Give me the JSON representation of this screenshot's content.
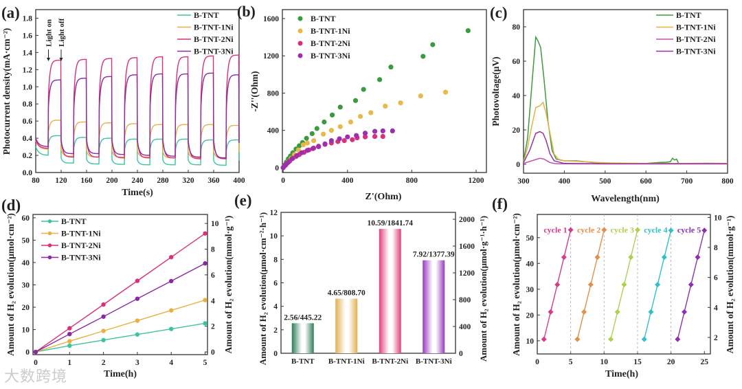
{
  "watermark": "大数跨境",
  "chart_data": [
    {
      "panel": "(a)",
      "type": "line",
      "xlabel": "Time(s)",
      "ylabel": "Photocurrent density(mA·cm⁻²)",
      "xlim": [
        80,
        400
      ],
      "ylim": [
        0,
        1.9
      ],
      "xticks": [
        80,
        120,
        160,
        200,
        240,
        280,
        320,
        360,
        400
      ],
      "yticks": [
        "0.0",
        "0.2",
        "0.4",
        "0.6",
        "0.8",
        "1.0",
        "1.2",
        "1.4",
        "1.6",
        "1.8"
      ],
      "annotations": [
        "Light on",
        "Light off"
      ],
      "annotation_x": [
        100,
        120
      ],
      "light_on_start": [
        100,
        140,
        180,
        220,
        260,
        300,
        340,
        380
      ],
      "light_on_duration": 20,
      "legend_position": "top-right",
      "series": [
        {
          "name": "B-TNT",
          "color": "#3cc4a0",
          "off_level": [
            0.2,
            0.11,
            0.1,
            0.095,
            0.09,
            0.09,
            0.09,
            0.085
          ],
          "on_level": [
            0.43,
            0.41,
            0.4,
            0.39,
            0.39,
            0.39,
            0.38,
            0.38
          ]
        },
        {
          "name": "B-TNT-1Ni",
          "color": "#e8b040",
          "off_level": [
            0.27,
            0.19,
            0.18,
            0.18,
            0.18,
            0.17,
            0.17,
            0.17
          ],
          "on_level": [
            0.61,
            0.59,
            0.58,
            0.57,
            0.56,
            0.56,
            0.56,
            0.55
          ]
        },
        {
          "name": "B-TNT-2Ni",
          "color": "#d8307a",
          "off_level": [
            0.28,
            0.18,
            0.18,
            0.17,
            0.17,
            0.17,
            0.16,
            0.16
          ],
          "on_level": [
            1.31,
            1.32,
            1.33,
            1.34,
            1.35,
            1.35,
            1.36,
            1.37
          ]
        },
        {
          "name": "B-TNT-3Ni",
          "color": "#8a2aa0",
          "off_level": [
            0.3,
            0.22,
            0.22,
            0.21,
            0.2,
            0.19,
            0.18,
            0.17
          ],
          "on_level": [
            1.08,
            1.1,
            1.12,
            1.14,
            1.15,
            1.15,
            1.16,
            1.14
          ]
        }
      ]
    },
    {
      "panel": "(b)",
      "type": "scatter",
      "xlabel": "Z'(Ohm)",
      "ylabel": "-Z''(Ohm)",
      "xlim": [
        -5,
        1264
      ],
      "ylim": [
        -52,
        1696
      ],
      "xticks": [
        0,
        400,
        800,
        1200
      ],
      "yticks": [
        0,
        400,
        800,
        1200,
        1600
      ],
      "legend_position": "top-left",
      "series": [
        {
          "name": "B-TNT",
          "color": "#3a9a40",
          "points": [
            [
              0,
              0
            ],
            [
              10,
              30
            ],
            [
              20,
              60
            ],
            [
              32,
              95
            ],
            [
              45,
              125
            ],
            [
              60,
              160
            ],
            [
              80,
              200
            ],
            [
              100,
              235
            ],
            [
              120,
              270
            ],
            [
              145,
              315
            ],
            [
              180,
              365
            ],
            [
              210,
              420
            ],
            [
              255,
              490
            ],
            [
              305,
              565
            ],
            [
              355,
              650
            ],
            [
              450,
              720
            ],
            [
              500,
              840
            ],
            [
              600,
              945
            ],
            [
              670,
              1080
            ],
            [
              870,
              1195
            ],
            [
              930,
              1320
            ],
            [
              1150,
              1470
            ]
          ]
        },
        {
          "name": "B-TNT-1Ni",
          "color": "#e8b84a",
          "points": [
            [
              0,
              0
            ],
            [
              15,
              30
            ],
            [
              30,
              60
            ],
            [
              50,
              100
            ],
            [
              70,
              140
            ],
            [
              95,
              190
            ],
            [
              125,
              245
            ],
            [
              150,
              265
            ],
            [
              190,
              290
            ],
            [
              250,
              360
            ],
            [
              300,
              400
            ],
            [
              355,
              440
            ],
            [
              420,
              490
            ],
            [
              480,
              550
            ],
            [
              545,
              590
            ],
            [
              635,
              660
            ],
            [
              730,
              695
            ],
            [
              855,
              770
            ],
            [
              1010,
              810
            ]
          ]
        },
        {
          "name": "B-TNT-2Ni",
          "color": "#d8307a",
          "points": [
            [
              0,
              0
            ],
            [
              10,
              20
            ],
            [
              20,
              40
            ],
            [
              40,
              70
            ],
            [
              60,
              100
            ],
            [
              80,
              120
            ],
            [
              100,
              140
            ],
            [
              130,
              165
            ],
            [
              160,
              190
            ],
            [
              190,
              210
            ],
            [
              220,
              230
            ],
            [
              260,
              250
            ],
            [
              300,
              265
            ],
            [
              340,
              280
            ],
            [
              380,
              290
            ],
            [
              430,
              300
            ],
            [
              460,
              320
            ],
            [
              510,
              330
            ],
            [
              570,
              335
            ],
            [
              620,
              335
            ]
          ]
        },
        {
          "name": "B-TNT-3Ni",
          "color": "#9a30b0",
          "points": [
            [
              0,
              0
            ],
            [
              15,
              28
            ],
            [
              30,
              55
            ],
            [
              55,
              95
            ],
            [
              85,
              130
            ],
            [
              115,
              160
            ],
            [
              150,
              185
            ],
            [
              185,
              205
            ],
            [
              220,
              225
            ],
            [
              260,
              255
            ],
            [
              300,
              290
            ],
            [
              350,
              310
            ],
            [
              400,
              330
            ],
            [
              455,
              345
            ],
            [
              510,
              370
            ],
            [
              570,
              390
            ],
            [
              620,
              395
            ],
            [
              680,
              395
            ]
          ]
        }
      ]
    },
    {
      "panel": "(c)",
      "type": "line",
      "xlabel": "Wavelength(nm)",
      "ylabel": "Photovoltage(μV)",
      "xlim": [
        300,
        800
      ],
      "ylim": [
        -5.2,
        90
      ],
      "xticks": [
        300,
        400,
        500,
        600,
        700,
        800
      ],
      "yticks": [
        0,
        20,
        40,
        60,
        80
      ],
      "legend_position": "top-right",
      "series": [
        {
          "name": "B-TNT",
          "color": "#3a9a40",
          "points": [
            [
              300,
              2
            ],
            [
              310,
              15
            ],
            [
              320,
              45
            ],
            [
              330,
              74
            ],
            [
              335,
              72
            ],
            [
              342,
              68
            ],
            [
              350,
              50
            ],
            [
              360,
              25
            ],
            [
              370,
              8
            ],
            [
              380,
              3
            ],
            [
              400,
              2
            ],
            [
              430,
              2
            ],
            [
              450,
              1.5
            ],
            [
              470,
              1
            ],
            [
              500,
              0.8
            ],
            [
              550,
              0.5
            ],
            [
              600,
              0.5
            ],
            [
              630,
              1
            ],
            [
              650,
              1.2
            ],
            [
              660,
              1.5
            ],
            [
              665,
              3.5
            ],
            [
              670,
              2.5
            ],
            [
              675,
              3
            ],
            [
              680,
              0.5
            ],
            [
              700,
              0.5
            ],
            [
              750,
              0.6
            ],
            [
              800,
              0.5
            ]
          ]
        },
        {
          "name": "B-TNT-1Ni",
          "color": "#e8b040",
          "points": [
            [
              300,
              1
            ],
            [
              310,
              10
            ],
            [
              320,
              22
            ],
            [
              330,
              33
            ],
            [
              340,
              34
            ],
            [
              348,
              36
            ],
            [
              355,
              30
            ],
            [
              365,
              18
            ],
            [
              375,
              6
            ],
            [
              385,
              3
            ],
            [
              400,
              2
            ],
            [
              450,
              1.5
            ],
            [
              500,
              0.8
            ],
            [
              600,
              0.5
            ],
            [
              800,
              0.5
            ]
          ]
        },
        {
          "name": "B-TNT-2Ni",
          "color": "#c050b0",
          "points": [
            [
              300,
              0.5
            ],
            [
              320,
              2
            ],
            [
              340,
              3.5
            ],
            [
              350,
              3
            ],
            [
              365,
              1
            ],
            [
              380,
              0.3
            ],
            [
              500,
              0.2
            ],
            [
              800,
              0.2
            ]
          ]
        },
        {
          "name": "B-TNT-3Ni",
          "color": "#9a30a8",
          "points": [
            [
              300,
              1
            ],
            [
              315,
              8
            ],
            [
              330,
              18
            ],
            [
              340,
              19
            ],
            [
              348,
              18
            ],
            [
              355,
              14
            ],
            [
              365,
              6
            ],
            [
              375,
              2
            ],
            [
              400,
              0.5
            ],
            [
              500,
              0.3
            ],
            [
              800,
              0.3
            ]
          ]
        }
      ]
    },
    {
      "panel": "(d)",
      "type": "line",
      "xlabel": "Time(h)",
      "ylabel": "Amount of H₂ evolution(μmol·cm⁻²)",
      "ylabel_right": "Amount of H₂ evolution(mmol·g⁻¹)",
      "xlim": [
        -0.08,
        5.07
      ],
      "ylim": [
        -1.2,
        61.5
      ],
      "ylim_right": [
        -0.21,
        10.7
      ],
      "xticks": [
        0,
        1,
        2,
        3,
        4,
        5
      ],
      "yticks": [
        0,
        10,
        20,
        30,
        40,
        50,
        60
      ],
      "yticks_right": [
        0,
        2,
        4,
        6,
        8,
        10
      ],
      "legend_position": "top-left",
      "x": [
        0,
        1,
        2,
        3,
        4,
        5
      ],
      "series": [
        {
          "name": "B-TNT",
          "color": "#3cc4a0",
          "values": [
            0,
            2.8,
            5.3,
            7.8,
            10.3,
            12.8
          ]
        },
        {
          "name": "B-TNT-1Ni",
          "color": "#e8b040",
          "values": [
            0,
            4.8,
            9.4,
            14.0,
            18.6,
            23.2
          ]
        },
        {
          "name": "B-TNT-2Ni",
          "color": "#d8307a",
          "values": [
            0,
            10.6,
            21.2,
            31.8,
            42.4,
            53.0
          ]
        },
        {
          "name": "B-TNT-3Ni",
          "color": "#8a2aa0",
          "values": [
            0,
            8.0,
            15.8,
            23.8,
            31.7,
            39.6
          ]
        }
      ]
    },
    {
      "panel": "(e)",
      "type": "bar",
      "ylabel": "Amount of H₂ evolution(μmol·cm⁻²·h⁻¹)",
      "ylabel_right": "Amount of H₂ evolution(μmol·g⁻¹·h⁻¹)",
      "ylim": [
        0,
        12
      ],
      "ylim_right": [
        0,
        2103
      ],
      "yticks": [
        0,
        2,
        4,
        6,
        8,
        10,
        12
      ],
      "yticks_right": [
        0,
        400,
        800,
        1200,
        1600,
        2000
      ],
      "categories": [
        "B-TNT",
        "B-TNT-1Ni",
        "B-TNT-2Ni",
        "B-TNT-3Ni"
      ],
      "values": [
        2.56,
        4.65,
        10.59,
        7.92
      ],
      "values_right": [
        445.22,
        808.7,
        1841.74,
        1377.39
      ],
      "data_labels": [
        "2.56/445.22",
        "4.65/808.70",
        "10.59/1841.74",
        "7.92/1377.39"
      ],
      "colors": [
        "#2e7d5a",
        "#e0b050",
        "#e0407a",
        "#9a3ac0"
      ]
    },
    {
      "panel": "(f)",
      "type": "line",
      "xlabel": "Time(h)",
      "ylabel": "Amount of H₂ evolution(μmol·cm⁻²)",
      "ylabel_right": "Amount of H₂ evolution(mmol·g⁻¹)",
      "xlim": [
        0,
        25.9
      ],
      "ylim": [
        4.9,
        59
      ],
      "ylim_right": [
        0.9,
        10.2
      ],
      "xticks": [
        0,
        5,
        10,
        15,
        20,
        25
      ],
      "yticks": [
        10,
        20,
        30,
        40,
        50
      ],
      "yticks_right": [
        2,
        4,
        6,
        8,
        10
      ],
      "separators_x": [
        5,
        10,
        15,
        20
      ],
      "series": [
        {
          "name": "cycle 1",
          "color": "#d63a8a",
          "x": [
            1,
            2,
            3,
            4,
            5
          ],
          "values": [
            10.6,
            21.2,
            31.8,
            42.4,
            53.0
          ]
        },
        {
          "name": "cycle 2",
          "color": "#e0904a",
          "x": [
            6,
            7,
            8,
            9,
            10
          ],
          "values": [
            10.6,
            21.2,
            31.8,
            42.4,
            53.0
          ]
        },
        {
          "name": "cycle 3",
          "color": "#b0d050",
          "x": [
            11,
            12,
            13,
            14,
            15
          ],
          "values": [
            10.6,
            21.2,
            31.8,
            42.4,
            53.0
          ]
        },
        {
          "name": "cycle 4",
          "color": "#30c0c8",
          "x": [
            16,
            17,
            18,
            19,
            20
          ],
          "values": [
            10.6,
            21.2,
            31.8,
            42.4,
            52.8
          ]
        },
        {
          "name": "cycle 5",
          "color": "#8a30b0",
          "x": [
            21,
            22,
            23,
            24,
            25
          ],
          "values": [
            10.6,
            21.2,
            31.8,
            42.4,
            52.8
          ]
        }
      ]
    }
  ]
}
